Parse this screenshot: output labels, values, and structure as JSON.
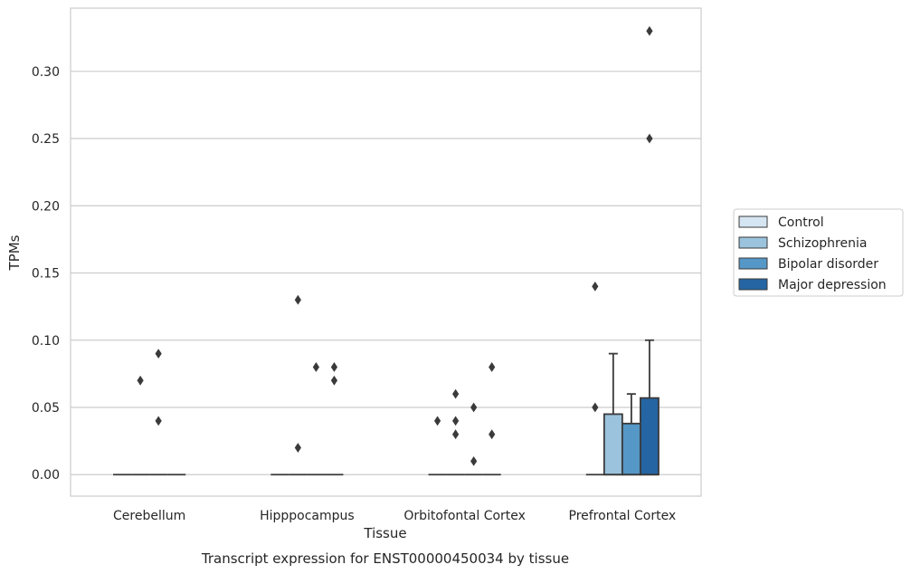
{
  "caption": "Transcript expression for ENST00000450034 by tissue",
  "chart_data": {
    "type": "box",
    "xlabel": "Tissue",
    "ylabel": "TPMs",
    "ylim": [
      -0.016,
      0.347
    ],
    "yticks": [
      0.0,
      0.05,
      0.1,
      0.15,
      0.2,
      0.25,
      0.3
    ],
    "ytick_labels": [
      "0.00",
      "0.05",
      "0.10",
      "0.15",
      "0.20",
      "0.25",
      "0.30"
    ],
    "grid": true,
    "legend_position": "right",
    "categories": [
      "Cerebellum",
      "Hipppocampus",
      "Orbitofontal Cortex",
      "Prefrontal Cortex"
    ],
    "series": [
      {
        "name": "Control",
        "color": "#d6e5f2"
      },
      {
        "name": "Schizophrenia",
        "color": "#9bc3dd"
      },
      {
        "name": "Bipolar disorder",
        "color": "#5597c6"
      },
      {
        "name": "Major depression",
        "color": "#2565a3"
      }
    ],
    "boxes": [
      {
        "category": "Cerebellum",
        "series": "Control",
        "q1": 0,
        "median": 0,
        "q3": 0,
        "whisker_low": 0,
        "whisker_high": 0,
        "outliers": []
      },
      {
        "category": "Cerebellum",
        "series": "Schizophrenia",
        "q1": 0,
        "median": 0,
        "q3": 0,
        "whisker_low": 0,
        "whisker_high": 0,
        "outliers": [
          0.07
        ]
      },
      {
        "category": "Cerebellum",
        "series": "Bipolar disorder",
        "q1": 0,
        "median": 0,
        "q3": 0,
        "whisker_low": 0,
        "whisker_high": 0,
        "outliers": [
          0.09,
          0.04
        ]
      },
      {
        "category": "Cerebellum",
        "series": "Major depression",
        "q1": 0,
        "median": 0,
        "q3": 0,
        "whisker_low": 0,
        "whisker_high": 0,
        "outliers": []
      },
      {
        "category": "Hipppocampus",
        "series": "Control",
        "q1": 0,
        "median": 0,
        "q3": 0,
        "whisker_low": 0,
        "whisker_high": 0,
        "outliers": []
      },
      {
        "category": "Hipppocampus",
        "series": "Schizophrenia",
        "q1": 0,
        "median": 0,
        "q3": 0,
        "whisker_low": 0,
        "whisker_high": 0,
        "outliers": [
          0.13,
          0.02
        ]
      },
      {
        "category": "Hipppocampus",
        "series": "Bipolar disorder",
        "q1": 0,
        "median": 0,
        "q3": 0,
        "whisker_low": 0,
        "whisker_high": 0,
        "outliers": [
          0.08
        ]
      },
      {
        "category": "Hipppocampus",
        "series": "Major depression",
        "q1": 0,
        "median": 0,
        "q3": 0,
        "whisker_low": 0,
        "whisker_high": 0,
        "outliers": [
          0.08,
          0.07
        ]
      },
      {
        "category": "Orbitofontal Cortex",
        "series": "Control",
        "q1": 0,
        "median": 0,
        "q3": 0,
        "whisker_low": 0,
        "whisker_high": 0,
        "outliers": [
          0.04
        ]
      },
      {
        "category": "Orbitofontal Cortex",
        "series": "Schizophrenia",
        "q1": 0,
        "median": 0,
        "q3": 0,
        "whisker_low": 0,
        "whisker_high": 0,
        "outliers": [
          0.06,
          0.04,
          0.03
        ]
      },
      {
        "category": "Orbitofontal Cortex",
        "series": "Bipolar disorder",
        "q1": 0,
        "median": 0,
        "q3": 0,
        "whisker_low": 0,
        "whisker_high": 0,
        "outliers": [
          0.05,
          0.01
        ]
      },
      {
        "category": "Orbitofontal Cortex",
        "series": "Major depression",
        "q1": 0,
        "median": 0,
        "q3": 0,
        "whisker_low": 0,
        "whisker_high": 0,
        "outliers": [
          0.08,
          0.03
        ]
      },
      {
        "category": "Prefrontal Cortex",
        "series": "Control",
        "q1": 0,
        "median": 0,
        "q3": 0,
        "whisker_low": 0,
        "whisker_high": 0,
        "outliers": [
          0.14,
          0.05
        ]
      },
      {
        "category": "Prefrontal Cortex",
        "series": "Schizophrenia",
        "q1": 0,
        "median": 0,
        "q3": 0.045,
        "whisker_low": 0,
        "whisker_high": 0.09,
        "outliers": []
      },
      {
        "category": "Prefrontal Cortex",
        "series": "Bipolar disorder",
        "q1": 0,
        "median": 0,
        "q3": 0.038,
        "whisker_low": 0,
        "whisker_high": 0.06,
        "outliers": []
      },
      {
        "category": "Prefrontal Cortex",
        "series": "Major depression",
        "q1": 0,
        "median": 0,
        "q3": 0.057,
        "whisker_low": 0,
        "whisker_high": 0.1,
        "outliers": [
          0.33,
          0.25
        ]
      }
    ]
  }
}
